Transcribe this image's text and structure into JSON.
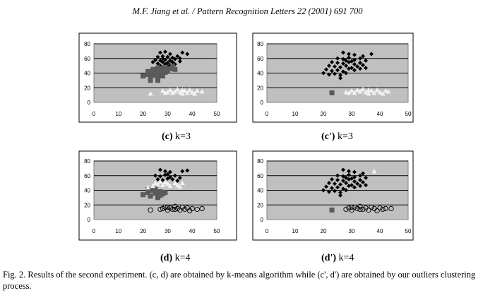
{
  "header": {
    "running_title": "M.F. Jiang et al. / Pattern Recognition Letters 22 (2001) 691  700"
  },
  "caption": {
    "line1": "Fig.  2. Results of the second experiment. (c, d) are obtained by k-means algorithm while (c', d') are obtained by our outliers clustering",
    "line2": "process."
  },
  "chart_data": [
    {
      "type": "scatter",
      "id": "c",
      "label_bold": "(c)",
      "label_rest": " k=3",
      "xlim": [
        0,
        50
      ],
      "ylim": [
        0,
        80
      ],
      "xticks": [
        0,
        10,
        20,
        30,
        40,
        50
      ],
      "yticks": [
        0,
        20,
        40,
        60,
        80
      ],
      "grid": true,
      "background": "#c0c0c0",
      "series": [
        {
          "marker": "diamond",
          "color": "#000000",
          "points": [
            [
              27,
              68
            ],
            [
              29,
              69
            ],
            [
              31,
              66
            ],
            [
              36,
              68
            ],
            [
              38,
              66
            ],
            [
              26,
              62
            ],
            [
              28,
              63
            ],
            [
              30,
              62
            ],
            [
              32,
              61
            ],
            [
              34,
              63
            ],
            [
              25,
              58
            ],
            [
              27,
              57
            ],
            [
              29,
              58
            ],
            [
              31,
              57
            ],
            [
              33,
              59
            ],
            [
              35,
              56
            ],
            [
              24,
              55
            ],
            [
              28,
              55
            ],
            [
              30,
              54
            ],
            [
              32,
              55
            ],
            [
              26,
              53
            ],
            [
              29,
              52
            ],
            [
              31,
              51
            ],
            [
              33,
              52
            ],
            [
              27,
              50
            ],
            [
              30,
              49
            ],
            [
              28,
              60
            ],
            [
              35,
              60
            ]
          ]
        },
        {
          "marker": "square",
          "color": "#5a5a5a",
          "points": [
            [
              20,
              36
            ],
            [
              22,
              38
            ],
            [
              23,
              34
            ],
            [
              24,
              40
            ],
            [
              25,
              37
            ],
            [
              26,
              33
            ],
            [
              27,
              42
            ],
            [
              28,
              36
            ],
            [
              24,
              45
            ],
            [
              26,
              47
            ],
            [
              28,
              46
            ],
            [
              30,
              44
            ],
            [
              22,
              42
            ],
            [
              25,
              43
            ],
            [
              29,
              48
            ],
            [
              31,
              46
            ],
            [
              33,
              45
            ],
            [
              27,
              39
            ],
            [
              23,
              30
            ],
            [
              26,
              30
            ],
            [
              29,
              41
            ],
            [
              32,
              49
            ]
          ]
        },
        {
          "marker": "triangle",
          "color": "#f2f2f2",
          "points": [
            [
              23,
              12
            ],
            [
              28,
              16
            ],
            [
              30,
              14
            ],
            [
              31,
              17
            ],
            [
              32,
              13
            ],
            [
              33,
              15
            ],
            [
              34,
              18
            ],
            [
              35,
              14
            ],
            [
              36,
              12
            ],
            [
              37,
              16
            ],
            [
              38,
              13
            ],
            [
              39,
              17
            ],
            [
              40,
              14
            ],
            [
              41,
              12
            ],
            [
              42,
              16
            ],
            [
              44,
              15
            ],
            [
              29,
              13
            ],
            [
              36,
              17
            ]
          ]
        }
      ]
    },
    {
      "type": "scatter",
      "id": "c_prime",
      "label_bold": "(c')",
      "label_rest": " k=3",
      "xlim": [
        0,
        50
      ],
      "ylim": [
        0,
        80
      ],
      "xticks": [
        0,
        10,
        20,
        30,
        40,
        50
      ],
      "yticks": [
        0,
        20,
        40,
        60,
        80
      ],
      "grid": true,
      "background": "#c0c0c0",
      "series": [
        {
          "marker": "diamond",
          "color": "#000000",
          "points": [
            [
              27,
              68
            ],
            [
              29,
              66
            ],
            [
              31,
              65
            ],
            [
              34,
              63
            ],
            [
              37,
              66
            ],
            [
              25,
              60
            ],
            [
              27,
              59
            ],
            [
              29,
              61
            ],
            [
              31,
              58
            ],
            [
              33,
              60
            ],
            [
              35,
              57
            ],
            [
              23,
              55
            ],
            [
              25,
              54
            ],
            [
              27,
              53
            ],
            [
              29,
              55
            ],
            [
              31,
              52
            ],
            [
              33,
              54
            ],
            [
              22,
              50
            ],
            [
              24,
              49
            ],
            [
              26,
              48
            ],
            [
              28,
              50
            ],
            [
              30,
              47
            ],
            [
              32,
              49
            ],
            [
              34,
              51
            ],
            [
              21,
              45
            ],
            [
              23,
              43
            ],
            [
              25,
              44
            ],
            [
              27,
              42
            ],
            [
              29,
              46
            ],
            [
              31,
              44
            ],
            [
              33,
              46
            ],
            [
              22,
              38
            ],
            [
              24,
              39
            ],
            [
              26,
              37
            ],
            [
              28,
              40
            ],
            [
              20,
              40
            ],
            [
              26,
              33
            ],
            [
              35,
              47
            ],
            [
              30,
              56
            ],
            [
              28,
              57
            ]
          ]
        },
        {
          "marker": "square",
          "color": "#5a5a5a",
          "points": [
            [
              23,
              13
            ]
          ]
        },
        {
          "marker": "triangle",
          "color": "#f2f2f2",
          "points": [
            [
              28,
              14
            ],
            [
              30,
              16
            ],
            [
              31,
              13
            ],
            [
              32,
              17
            ],
            [
              33,
              15
            ],
            [
              34,
              18
            ],
            [
              35,
              14
            ],
            [
              36,
              12
            ],
            [
              37,
              16
            ],
            [
              38,
              13
            ],
            [
              39,
              17
            ],
            [
              40,
              14
            ],
            [
              41,
              12
            ],
            [
              42,
              16
            ],
            [
              43,
              15
            ],
            [
              29,
              13
            ],
            [
              36,
              17
            ]
          ]
        }
      ]
    },
    {
      "type": "scatter",
      "id": "d",
      "label_bold": "(d)",
      "label_rest": " k=4",
      "xlim": [
        0,
        50
      ],
      "ylim": [
        0,
        80
      ],
      "xticks": [
        0,
        10,
        20,
        30,
        40,
        50
      ],
      "yticks": [
        0,
        20,
        40,
        60,
        80
      ],
      "grid": true,
      "background": "#c0c0c0",
      "series": [
        {
          "marker": "diamond",
          "color": "#000000",
          "points": [
            [
              27,
              68
            ],
            [
              29,
              66
            ],
            [
              31,
              65
            ],
            [
              36,
              66
            ],
            [
              38,
              67
            ],
            [
              25,
              60
            ],
            [
              27,
              59
            ],
            [
              29,
              61
            ],
            [
              31,
              58
            ],
            [
              33,
              60
            ],
            [
              35,
              57
            ],
            [
              26,
              55
            ],
            [
              28,
              54
            ],
            [
              30,
              56
            ],
            [
              32,
              55
            ],
            [
              34,
              53
            ],
            [
              30,
              62
            ]
          ]
        },
        {
          "marker": "square",
          "color": "#5a5a5a",
          "points": [
            [
              20,
              34
            ],
            [
              22,
              37
            ],
            [
              23,
              32
            ],
            [
              24,
              40
            ],
            [
              25,
              36
            ],
            [
              26,
              30
            ],
            [
              27,
              38
            ],
            [
              28,
              35
            ],
            [
              22,
              41
            ],
            [
              25,
              42
            ],
            [
              29,
              37
            ],
            [
              27,
              33
            ]
          ]
        },
        {
          "marker": "triangle",
          "color": "#f2f2f2",
          "points": [
            [
              22,
              44
            ],
            [
              24,
              46
            ],
            [
              25,
              50
            ],
            [
              26,
              48
            ],
            [
              28,
              47
            ],
            [
              30,
              49
            ],
            [
              31,
              46
            ],
            [
              33,
              50
            ],
            [
              34,
              47
            ],
            [
              27,
              52
            ],
            [
              29,
              51
            ],
            [
              35,
              45
            ],
            [
              36,
              50
            ]
          ]
        },
        {
          "marker": "circle",
          "color": "#000000",
          "points": [
            [
              23,
              13
            ],
            [
              27,
              14
            ],
            [
              28,
              15
            ],
            [
              29,
              17
            ],
            [
              30,
              13
            ],
            [
              31,
              16
            ],
            [
              32,
              14
            ],
            [
              33,
              18
            ],
            [
              34,
              15
            ],
            [
              35,
              13
            ],
            [
              36,
              17
            ],
            [
              37,
              14
            ],
            [
              38,
              16
            ],
            [
              39,
              12
            ],
            [
              40,
              15
            ],
            [
              42,
              14
            ],
            [
              44,
              15
            ],
            [
              30,
              17
            ],
            [
              33,
              14
            ]
          ]
        }
      ]
    },
    {
      "type": "scatter",
      "id": "d_prime",
      "label_bold": "(d')",
      "label_rest": " k=4",
      "xlim": [
        0,
        50
      ],
      "ylim": [
        0,
        80
      ],
      "xticks": [
        0,
        10,
        20,
        30,
        40,
        50
      ],
      "yticks": [
        0,
        20,
        40,
        60,
        80
      ],
      "grid": true,
      "background": "#c0c0c0",
      "series": [
        {
          "marker": "diamond",
          "color": "#000000",
          "points": [
            [
              27,
              68
            ],
            [
              29,
              66
            ],
            [
              31,
              65
            ],
            [
              34,
              63
            ],
            [
              25,
              60
            ],
            [
              27,
              59
            ],
            [
              29,
              61
            ],
            [
              31,
              58
            ],
            [
              33,
              60
            ],
            [
              35,
              57
            ],
            [
              23,
              55
            ],
            [
              25,
              54
            ],
            [
              27,
              53
            ],
            [
              29,
              55
            ],
            [
              31,
              52
            ],
            [
              33,
              54
            ],
            [
              22,
              50
            ],
            [
              24,
              49
            ],
            [
              26,
              48
            ],
            [
              28,
              50
            ],
            [
              30,
              47
            ],
            [
              32,
              49
            ],
            [
              34,
              51
            ],
            [
              21,
              45
            ],
            [
              23,
              43
            ],
            [
              25,
              44
            ],
            [
              27,
              42
            ],
            [
              29,
              46
            ],
            [
              31,
              44
            ],
            [
              33,
              46
            ],
            [
              22,
              38
            ],
            [
              24,
              39
            ],
            [
              26,
              37
            ],
            [
              28,
              40
            ],
            [
              20,
              40
            ],
            [
              26,
              33
            ],
            [
              35,
              47
            ],
            [
              30,
              56
            ],
            [
              28,
              57
            ]
          ]
        },
        {
          "marker": "square",
          "color": "#5a5a5a",
          "points": [
            [
              23,
              13
            ]
          ]
        },
        {
          "marker": "triangle",
          "color": "#f2f2f2",
          "points": [
            [
              38,
              66
            ]
          ]
        },
        {
          "marker": "circle",
          "color": "#000000",
          "points": [
            [
              28,
              14
            ],
            [
              29,
              16
            ],
            [
              30,
              13
            ],
            [
              31,
              17
            ],
            [
              32,
              15
            ],
            [
              33,
              18
            ],
            [
              34,
              14
            ],
            [
              35,
              16
            ],
            [
              36,
              13
            ],
            [
              37,
              17
            ],
            [
              38,
              15
            ],
            [
              39,
              12
            ],
            [
              40,
              16
            ],
            [
              41,
              14
            ],
            [
              42,
              15
            ],
            [
              44,
              15
            ],
            [
              30,
              17
            ],
            [
              33,
              14
            ]
          ]
        }
      ]
    }
  ]
}
